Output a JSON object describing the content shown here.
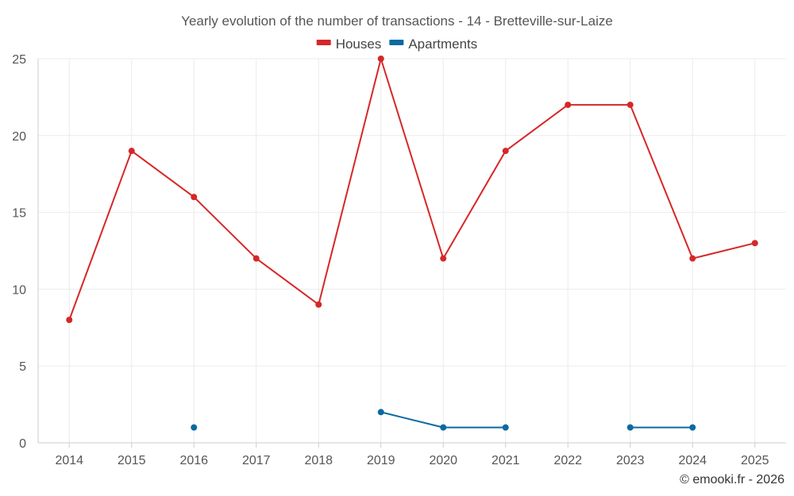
{
  "chart_data": {
    "type": "line",
    "title": "Yearly evolution of the number of transactions - 14 - Bretteville-sur-Laize",
    "categories": [
      "2014",
      "2015",
      "2016",
      "2017",
      "2018",
      "2019",
      "2020",
      "2021",
      "2022",
      "2023",
      "2024",
      "2025"
    ],
    "series": [
      {
        "name": "Houses",
        "color": "#d62728",
        "values": [
          8,
          19,
          16,
          12,
          9,
          25,
          12,
          19,
          22,
          22,
          12,
          13
        ]
      },
      {
        "name": "Apartments",
        "color": "#0b6aa2",
        "values": [
          null,
          null,
          1,
          null,
          null,
          2,
          1,
          1,
          null,
          1,
          1,
          null
        ]
      }
    ],
    "ylim": [
      0,
      25
    ],
    "yticks": [
      0,
      5,
      10,
      15,
      20,
      25
    ],
    "xlabel": "",
    "ylabel": "",
    "grid": true,
    "legend_position": "top-center"
  },
  "credit": "© emooki.fr - 2026"
}
